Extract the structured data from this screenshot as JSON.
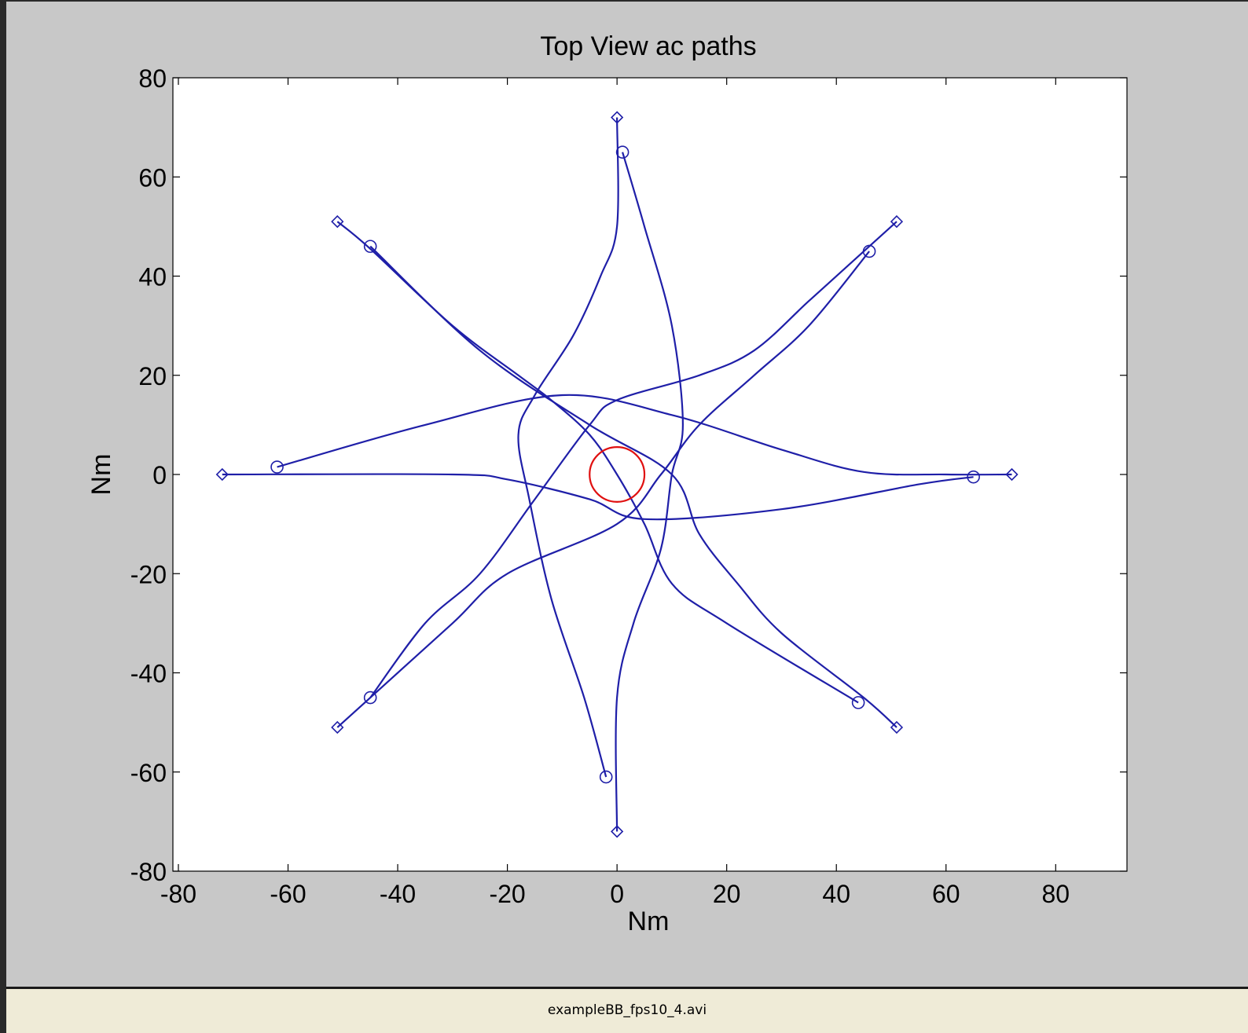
{
  "window": {
    "status_text": "exampleBB_fps10_4.avi"
  },
  "colors": {
    "figure_background": "#c8c8c8",
    "axes_background": "#ffffff",
    "path_color": "#1f1fa8",
    "center_circle_color": "#e01010",
    "status_bar_background": "#efebd7"
  },
  "chart_data": {
    "type": "line",
    "title": "Top View ac paths",
    "xlabel": "Nm",
    "ylabel": "Nm",
    "xlim": [
      -81,
      93
    ],
    "ylim": [
      -80,
      80
    ],
    "xticks": [
      -80,
      -60,
      -40,
      -20,
      0,
      20,
      40,
      60,
      80
    ],
    "yticks": [
      -80,
      -60,
      -40,
      -20,
      0,
      20,
      40,
      60,
      80
    ],
    "grid": false,
    "legend": "none",
    "series": [
      {
        "points": [
          [
            -72,
            0
          ],
          [
            -30,
            0
          ],
          [
            -20,
            -1
          ],
          [
            -5,
            -5
          ],
          [
            5,
            -9
          ],
          [
            30,
            -7
          ],
          [
            55,
            -2
          ],
          [
            65,
            -0.5
          ]
        ],
        "start_marker": "diamond",
        "end_marker": "circle"
      },
      {
        "points": [
          [
            72,
            0
          ],
          [
            60,
            0
          ],
          [
            45,
            0.5
          ],
          [
            30,
            5
          ],
          [
            10,
            12
          ],
          [
            -10,
            16
          ],
          [
            -35,
            10
          ],
          [
            -62,
            1.5
          ]
        ],
        "start_marker": "diamond",
        "end_marker": "circle"
      },
      {
        "points": [
          [
            0,
            72
          ],
          [
            0,
            50
          ],
          [
            -3,
            40
          ],
          [
            -8,
            28
          ],
          [
            -15,
            16
          ],
          [
            -18,
            8
          ],
          [
            -16,
            -5
          ],
          [
            -12,
            -25
          ],
          [
            -6,
            -45
          ],
          [
            -2,
            -61
          ]
        ],
        "start_marker": "diamond",
        "end_marker": "circle"
      },
      {
        "points": [
          [
            0,
            -72
          ],
          [
            0,
            -45
          ],
          [
            3,
            -30
          ],
          [
            8,
            -15
          ],
          [
            10,
            0
          ],
          [
            12,
            10
          ],
          [
            10,
            30
          ],
          [
            5,
            50
          ],
          [
            1,
            65
          ]
        ],
        "start_marker": "diamond",
        "end_marker": "circle"
      },
      {
        "points": [
          [
            -51,
            51
          ],
          [
            -45,
            45.5
          ],
          [
            -30,
            30
          ],
          [
            -18,
            20
          ],
          [
            -12,
            15
          ],
          [
            -5,
            8
          ],
          [
            0,
            0
          ],
          [
            5,
            -10
          ],
          [
            10,
            -22
          ],
          [
            20,
            -30
          ],
          [
            44,
            -46
          ]
        ],
        "start_marker": "diamond",
        "end_marker": "circle"
      },
      {
        "points": [
          [
            51,
            -51
          ],
          [
            45,
            -45
          ],
          [
            30,
            -32
          ],
          [
            22,
            -22
          ],
          [
            15,
            -12
          ],
          [
            10,
            0
          ],
          [
            -5,
            10
          ],
          [
            -25,
            25
          ],
          [
            -45,
            46
          ]
        ],
        "start_marker": "diamond",
        "end_marker": "circle"
      },
      {
        "points": [
          [
            51,
            51
          ],
          [
            45,
            45
          ],
          [
            35,
            35
          ],
          [
            25,
            25
          ],
          [
            15,
            20
          ],
          [
            0,
            15
          ],
          [
            -5,
            10
          ],
          [
            -15,
            -5
          ],
          [
            -25,
            -20
          ],
          [
            -35,
            -30
          ],
          [
            -45,
            -45
          ]
        ],
        "start_marker": "diamond",
        "end_marker": "circle"
      },
      {
        "points": [
          [
            -51,
            -51
          ],
          [
            -45,
            -45
          ],
          [
            -30,
            -30
          ],
          [
            -20,
            -20
          ],
          [
            0,
            -10
          ],
          [
            8,
            0
          ],
          [
            15,
            10
          ],
          [
            25,
            20
          ],
          [
            35,
            30
          ],
          [
            46,
            45
          ]
        ],
        "start_marker": "diamond",
        "end_marker": "circle"
      }
    ],
    "center_circle": {
      "x": 0,
      "y": 0,
      "radius": 5
    }
  }
}
